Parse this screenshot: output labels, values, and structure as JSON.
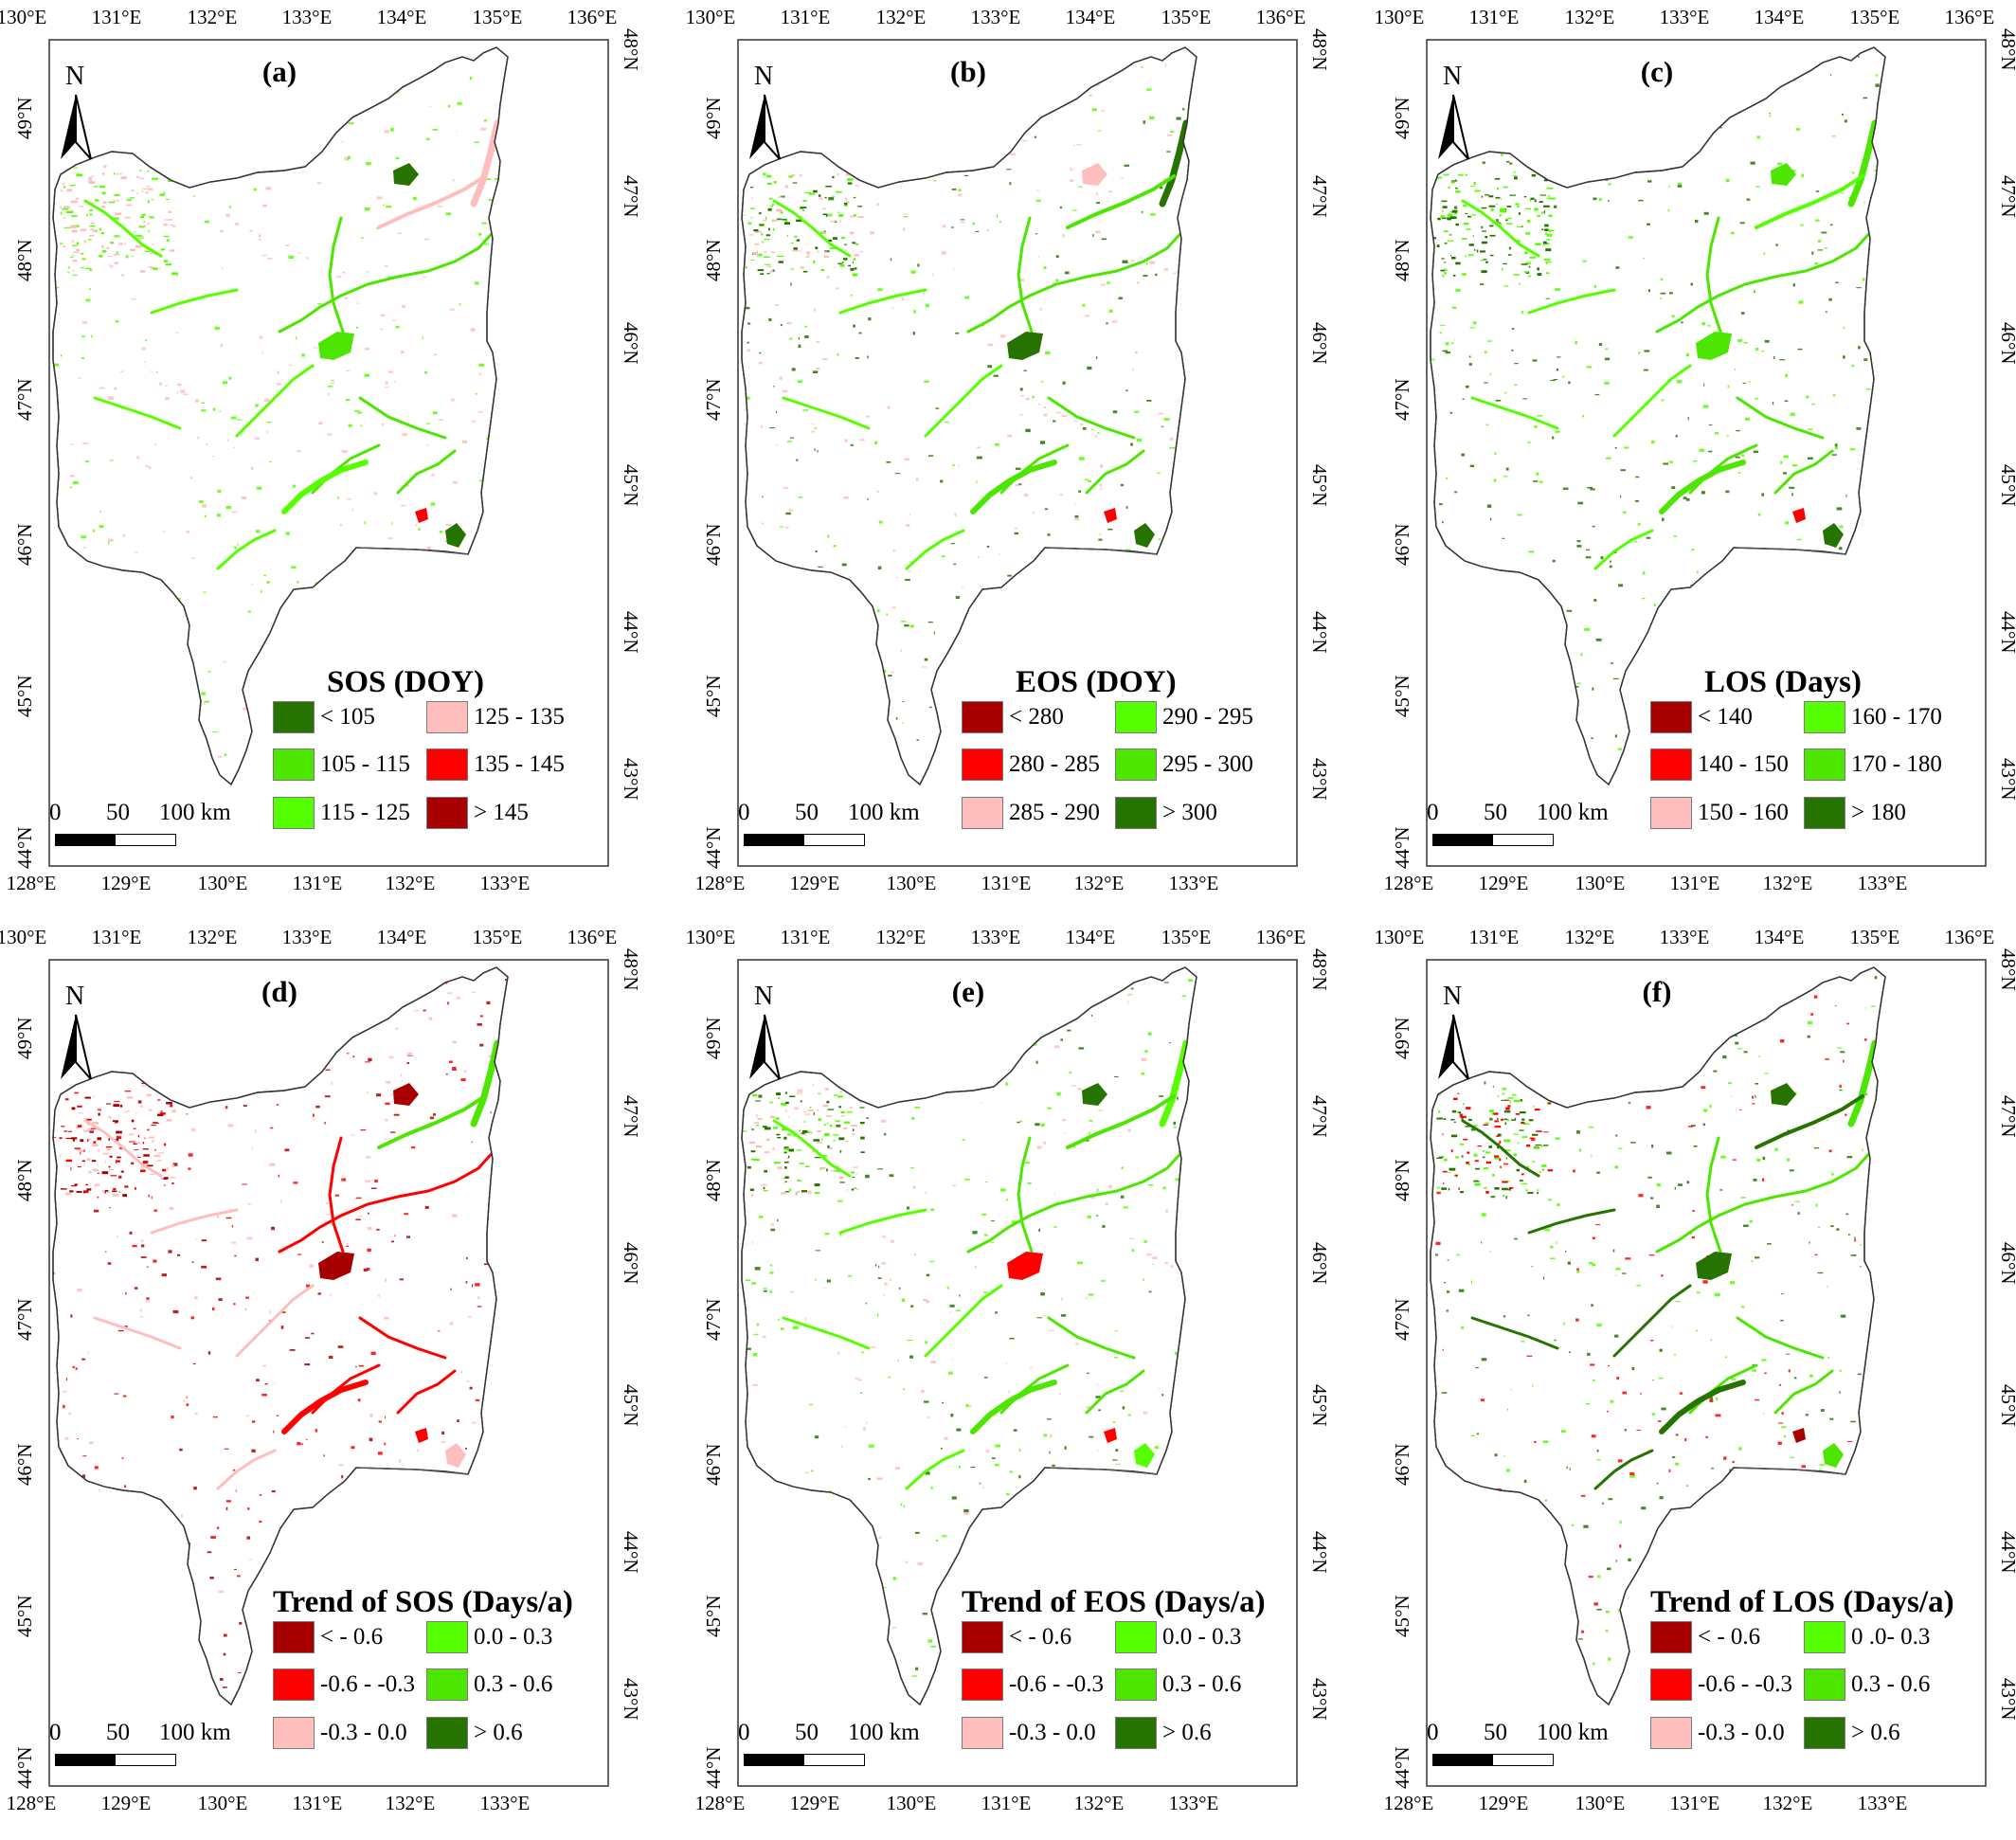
{
  "lon_top": [
    "130°E",
    "131°E",
    "132°E",
    "133°E",
    "134°E",
    "135°E",
    "136°E"
  ],
  "lon_bottom": [
    "128°E",
    "129°E",
    "130°E",
    "131°E",
    "132°E",
    "133°E"
  ],
  "lat_left": [
    "49°N",
    "48°N",
    "47°N",
    "46°N",
    "45°N",
    "44°N"
  ],
  "lat_right": [
    "48°N",
    "47°N",
    "46°N",
    "45°N",
    "44°N",
    "43°N"
  ],
  "north": "N",
  "scale": {
    "labels": [
      "0",
      "50",
      "100 km"
    ]
  },
  "colors": {
    "dark_red": "#a80000",
    "red": "#ff0000",
    "pink": "#ffbebe",
    "bright_green": "#55ff00",
    "green": "#4ce600",
    "dark_green": "#267300"
  },
  "panels": [
    {
      "label": "(a)",
      "legend_title": "SOS (DOY)",
      "legend": [
        {
          "text": "< 105",
          "color": "#267300"
        },
        {
          "text": "105 - 115",
          "color": "#4ce600"
        },
        {
          "text": "115 - 125",
          "color": "#55ff00"
        },
        {
          "text": "125 - 135",
          "color": "#ffbebe"
        },
        {
          "text": "135 - 145",
          "color": "#ff0000"
        },
        {
          "text": "> 145",
          "color": "#a80000"
        }
      ]
    },
    {
      "label": "(b)",
      "legend_title": "EOS (DOY)",
      "legend": [
        {
          "text": "< 280",
          "color": "#a80000"
        },
        {
          "text": "280 - 285",
          "color": "#ff0000"
        },
        {
          "text": "285 - 290",
          "color": "#ffbebe"
        },
        {
          "text": "290 - 295",
          "color": "#55ff00"
        },
        {
          "text": "295 - 300",
          "color": "#4ce600"
        },
        {
          "text": "> 300",
          "color": "#267300"
        }
      ]
    },
    {
      "label": "(c)",
      "legend_title": "LOS (Days)",
      "legend": [
        {
          "text": "< 140",
          "color": "#a80000"
        },
        {
          "text": "140 - 150",
          "color": "#ff0000"
        },
        {
          "text": "150 - 160",
          "color": "#ffbebe"
        },
        {
          "text": "160 - 170",
          "color": "#55ff00"
        },
        {
          "text": "170 - 180",
          "color": "#4ce600"
        },
        {
          "text": "> 180",
          "color": "#267300"
        }
      ]
    },
    {
      "label": "(d)",
      "legend_title": "Trend of SOS (Days/a)",
      "legend": [
        {
          "text": "< - 0.6",
          "color": "#a80000"
        },
        {
          "text": "-0.6 - -0.3",
          "color": "#ff0000"
        },
        {
          "text": "-0.3 - 0.0",
          "color": "#ffbebe"
        },
        {
          "text": "0.0 - 0.3",
          "color": "#55ff00"
        },
        {
          "text": "0.3 - 0.6",
          "color": "#4ce600"
        },
        {
          "text": "> 0.6",
          "color": "#267300"
        }
      ]
    },
    {
      "label": "(e)",
      "legend_title": "Trend of EOS (Days/a)",
      "legend": [
        {
          "text": "< - 0.6",
          "color": "#a80000"
        },
        {
          "text": "-0.6 - -0.3",
          "color": "#ff0000"
        },
        {
          "text": "-0.3 - 0.0",
          "color": "#ffbebe"
        },
        {
          "text": "0.0 - 0.3",
          "color": "#55ff00"
        },
        {
          "text": "0.3 - 0.6",
          "color": "#4ce600"
        },
        {
          "text": "> 0.6",
          "color": "#267300"
        }
      ]
    },
    {
      "label": "(f)",
      "legend_title": "Trend of LOS (Days/a)",
      "legend": [
        {
          "text": "< - 0.6",
          "color": "#a80000"
        },
        {
          "text": "-0.6 - -0.3",
          "color": "#ff0000"
        },
        {
          "text": "-0.3 - 0.0",
          "color": "#ffbebe"
        },
        {
          "text": "0 .0- 0.3",
          "color": "#55ff00"
        },
        {
          "text": "0.3 - 0.6",
          "color": "#4ce600"
        },
        {
          "text": "> 0.6",
          "color": "#267300"
        }
      ]
    }
  ]
}
